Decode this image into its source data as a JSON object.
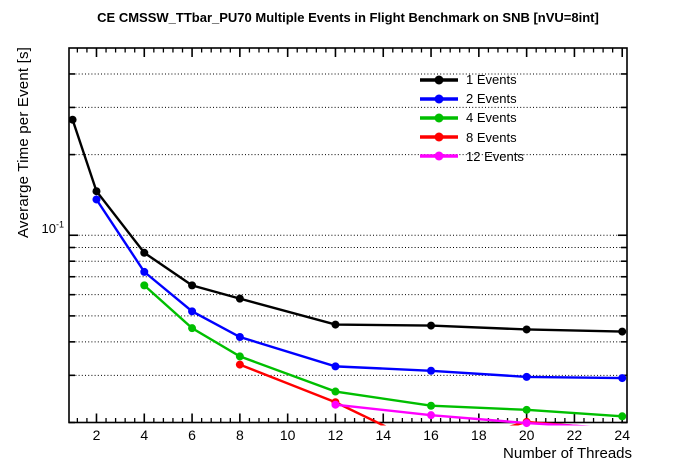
{
  "chart_data": {
    "type": "line",
    "title": "CE CMSSW_TTbar_PU70 Multiple Events in Flight Benchmark on SNB [nVU=8int]",
    "xlabel": "Number of Threads",
    "ylabel": "Averarge Time per Event [s]",
    "log_y": true,
    "x_range": [
      0.85,
      24.2
    ],
    "y_range": [
      0.02,
      0.5
    ],
    "x_ticks": [
      2,
      4,
      6,
      8,
      10,
      12,
      14,
      16,
      18,
      20,
      22,
      24
    ],
    "x_minor_step": 0.4,
    "y_gridlines": [
      0.03,
      0.04,
      0.05,
      0.06,
      0.07,
      0.08,
      0.09,
      0.1,
      0.2,
      0.3,
      0.4
    ],
    "y_ticks": [
      0.02,
      0.03,
      0.04,
      0.05,
      0.06,
      0.07,
      0.08,
      0.09,
      0.1,
      0.2,
      0.3,
      0.4
    ],
    "y_major_tick": 0.1,
    "y_tick_label_base": "10",
    "y_tick_label_exp": "-1",
    "grid": "dotted",
    "legend_position": "top-right",
    "series": [
      {
        "name": "1 Events",
        "color": "#000000",
        "x": [
          1,
          2,
          4,
          6,
          8,
          12,
          16,
          20,
          24
        ],
        "y": [
          0.27,
          0.146,
          0.086,
          0.065,
          0.058,
          0.0464,
          0.046,
          0.0445,
          0.0437
        ]
      },
      {
        "name": "2 Events",
        "color": "#0000ff",
        "x": [
          2,
          4,
          6,
          8,
          12,
          16,
          20,
          24
        ],
        "y": [
          0.136,
          0.073,
          0.052,
          0.0417,
          0.0324,
          0.0312,
          0.0296,
          0.0293
        ]
      },
      {
        "name": "4 Events",
        "color": "#00bf00",
        "x": [
          4,
          6,
          8,
          12,
          16,
          20,
          24
        ],
        "y": [
          0.065,
          0.045,
          0.0353,
          0.0261,
          0.0231,
          0.0223,
          0.0211
        ]
      },
      {
        "name": "8 Events",
        "color": "#ff0000",
        "x": [
          8,
          12,
          16,
          20,
          24
        ],
        "y": [
          0.0329,
          0.0238,
          0.016,
          0.0201,
          0.0188
        ]
      },
      {
        "name": "12 Events",
        "color": "#ff00ff",
        "x": [
          12,
          16,
          20,
          24
        ],
        "y": [
          0.0233,
          0.0213,
          0.0199,
          0.019
        ]
      }
    ]
  }
}
